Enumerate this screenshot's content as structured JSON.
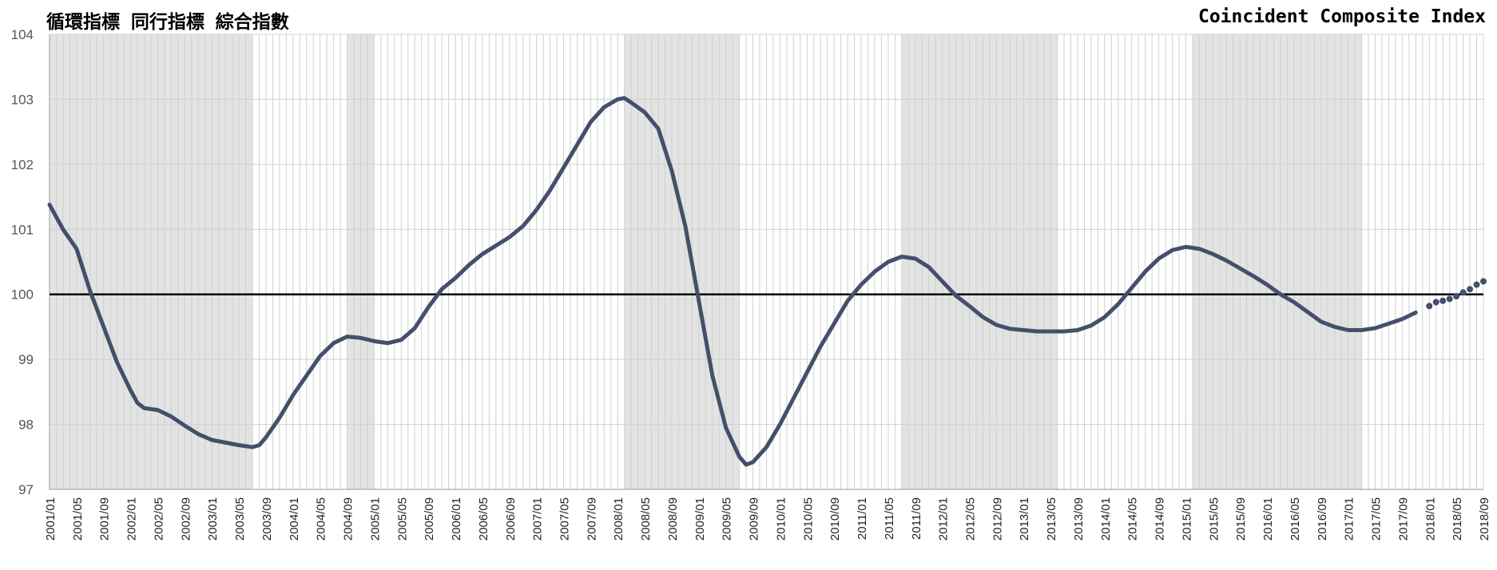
{
  "titles": {
    "left": "循環指標 同行指標 綜合指數",
    "right": "Coincident Composite Index"
  },
  "chart_data": {
    "type": "line",
    "title": "Coincident Composite Index",
    "ylim": [
      97,
      104
    ],
    "yticks": [
      97,
      98,
      99,
      100,
      101,
      102,
      103,
      104
    ],
    "reference_line": 100,
    "grid": true,
    "x_start": "2001/01",
    "x_end": "2018/09",
    "xtick_labels": [
      "2001/01",
      "2001/05",
      "2001/09",
      "2002/01",
      "2002/05",
      "2002/09",
      "2003/01",
      "2003/05",
      "2003/09",
      "2004/01",
      "2004/05",
      "2004/09",
      "2005/01",
      "2005/05",
      "2005/09",
      "2006/01",
      "2006/05",
      "2006/09",
      "2007/01",
      "2007/05",
      "2007/09",
      "2008/01",
      "2008/05",
      "2008/09",
      "2009/01",
      "2009/05",
      "2009/09",
      "2010/01",
      "2010/05",
      "2010/09",
      "2011/01",
      "2011/05",
      "2011/09",
      "2012/01",
      "2012/05",
      "2012/09",
      "2013/01",
      "2013/05",
      "2013/09",
      "2014/01",
      "2014/05",
      "2014/09",
      "2015/01",
      "2015/05",
      "2015/09",
      "2016/01",
      "2016/05",
      "2016/09",
      "2017/01",
      "2017/05",
      "2017/09",
      "2018/01",
      "2018/05",
      "2018/09"
    ],
    "shaded_periods": [
      {
        "start": "2001/01",
        "end": "2003/07"
      },
      {
        "start": "2004/09",
        "end": "2005/01"
      },
      {
        "start": "2008/02",
        "end": "2009/07"
      },
      {
        "start": "2011/07",
        "end": "2013/06"
      },
      {
        "start": "2015/02",
        "end": "2017/03"
      }
    ],
    "colors": {
      "line": "#44506a",
      "shade": "#e3e3e3",
      "grid": "#d0d0d0",
      "reference": "#000000"
    },
    "series": [
      {
        "style": "solid",
        "points": [
          [
            "2001/01",
            101.38
          ],
          [
            "2001/03",
            101.0
          ],
          [
            "2001/05",
            100.7
          ],
          [
            "2001/07",
            100.05
          ],
          [
            "2001/09",
            99.5
          ],
          [
            "2001/11",
            98.95
          ],
          [
            "2002/01",
            98.52
          ],
          [
            "2002/02",
            98.33
          ],
          [
            "2002/03",
            98.25
          ],
          [
            "2002/05",
            98.22
          ],
          [
            "2002/07",
            98.12
          ],
          [
            "2002/09",
            97.98
          ],
          [
            "2002/11",
            97.85
          ],
          [
            "2003/01",
            97.76
          ],
          [
            "2003/03",
            97.72
          ],
          [
            "2003/05",
            97.68
          ],
          [
            "2003/07",
            97.65
          ],
          [
            "2003/08",
            97.68
          ],
          [
            "2003/09",
            97.8
          ],
          [
            "2003/11",
            98.1
          ],
          [
            "2004/01",
            98.45
          ],
          [
            "2004/03",
            98.75
          ],
          [
            "2004/05",
            99.05
          ],
          [
            "2004/07",
            99.25
          ],
          [
            "2004/09",
            99.35
          ],
          [
            "2004/11",
            99.33
          ],
          [
            "2005/01",
            99.28
          ],
          [
            "2005/03",
            99.25
          ],
          [
            "2005/05",
            99.3
          ],
          [
            "2005/07",
            99.48
          ],
          [
            "2005/09",
            99.8
          ],
          [
            "2005/11",
            100.08
          ],
          [
            "2006/01",
            100.25
          ],
          [
            "2006/03",
            100.45
          ],
          [
            "2006/05",
            100.62
          ],
          [
            "2006/07",
            100.75
          ],
          [
            "2006/09",
            100.88
          ],
          [
            "2006/11",
            101.05
          ],
          [
            "2007/01",
            101.3
          ],
          [
            "2007/03",
            101.6
          ],
          [
            "2007/05",
            101.95
          ],
          [
            "2007/07",
            102.3
          ],
          [
            "2007/09",
            102.65
          ],
          [
            "2007/11",
            102.88
          ],
          [
            "2008/01",
            103.0
          ],
          [
            "2008/02",
            103.02
          ],
          [
            "2008/03",
            102.95
          ],
          [
            "2008/05",
            102.8
          ],
          [
            "2008/07",
            102.55
          ],
          [
            "2008/09",
            101.9
          ],
          [
            "2008/11",
            101.05
          ],
          [
            "2009/01",
            99.9
          ],
          [
            "2009/03",
            98.75
          ],
          [
            "2009/05",
            97.95
          ],
          [
            "2009/07",
            97.5
          ],
          [
            "2009/08",
            97.38
          ],
          [
            "2009/09",
            97.42
          ],
          [
            "2009/11",
            97.65
          ],
          [
            "2010/01",
            98.0
          ],
          [
            "2010/03",
            98.4
          ],
          [
            "2010/05",
            98.8
          ],
          [
            "2010/07",
            99.2
          ],
          [
            "2010/09",
            99.55
          ],
          [
            "2010/11",
            99.9
          ],
          [
            "2011/01",
            100.15
          ],
          [
            "2011/03",
            100.35
          ],
          [
            "2011/05",
            100.5
          ],
          [
            "2011/07",
            100.58
          ],
          [
            "2011/09",
            100.55
          ],
          [
            "2011/11",
            100.42
          ],
          [
            "2012/01",
            100.2
          ],
          [
            "2012/03",
            99.98
          ],
          [
            "2012/05",
            99.82
          ],
          [
            "2012/07",
            99.65
          ],
          [
            "2012/09",
            99.53
          ],
          [
            "2012/11",
            99.47
          ],
          [
            "2013/01",
            99.45
          ],
          [
            "2013/03",
            99.43
          ],
          [
            "2013/05",
            99.43
          ],
          [
            "2013/07",
            99.43
          ],
          [
            "2013/09",
            99.45
          ],
          [
            "2013/11",
            99.52
          ],
          [
            "2014/01",
            99.65
          ],
          [
            "2014/03",
            99.85
          ],
          [
            "2014/05",
            100.1
          ],
          [
            "2014/07",
            100.35
          ],
          [
            "2014/09",
            100.55
          ],
          [
            "2014/11",
            100.68
          ],
          [
            "2015/01",
            100.73
          ],
          [
            "2015/03",
            100.7
          ],
          [
            "2015/05",
            100.62
          ],
          [
            "2015/07",
            100.52
          ],
          [
            "2015/09",
            100.4
          ],
          [
            "2015/11",
            100.28
          ],
          [
            "2016/01",
            100.15
          ],
          [
            "2016/03",
            100.0
          ],
          [
            "2016/05",
            99.88
          ],
          [
            "2016/07",
            99.73
          ],
          [
            "2016/09",
            99.58
          ],
          [
            "2016/11",
            99.5
          ],
          [
            "2017/01",
            99.45
          ],
          [
            "2017/03",
            99.45
          ],
          [
            "2017/05",
            99.48
          ],
          [
            "2017/07",
            99.55
          ],
          [
            "2017/09",
            99.62
          ],
          [
            "2017/11",
            99.72
          ]
        ]
      },
      {
        "style": "dotted",
        "points": [
          [
            "2018/01",
            99.82
          ],
          [
            "2018/02",
            99.88
          ],
          [
            "2018/03",
            99.9
          ],
          [
            "2018/04",
            99.93
          ],
          [
            "2018/05",
            99.97
          ],
          [
            "2018/06",
            100.03
          ],
          [
            "2018/07",
            100.08
          ],
          [
            "2018/08",
            100.15
          ],
          [
            "2018/09",
            100.2
          ]
        ]
      }
    ]
  }
}
